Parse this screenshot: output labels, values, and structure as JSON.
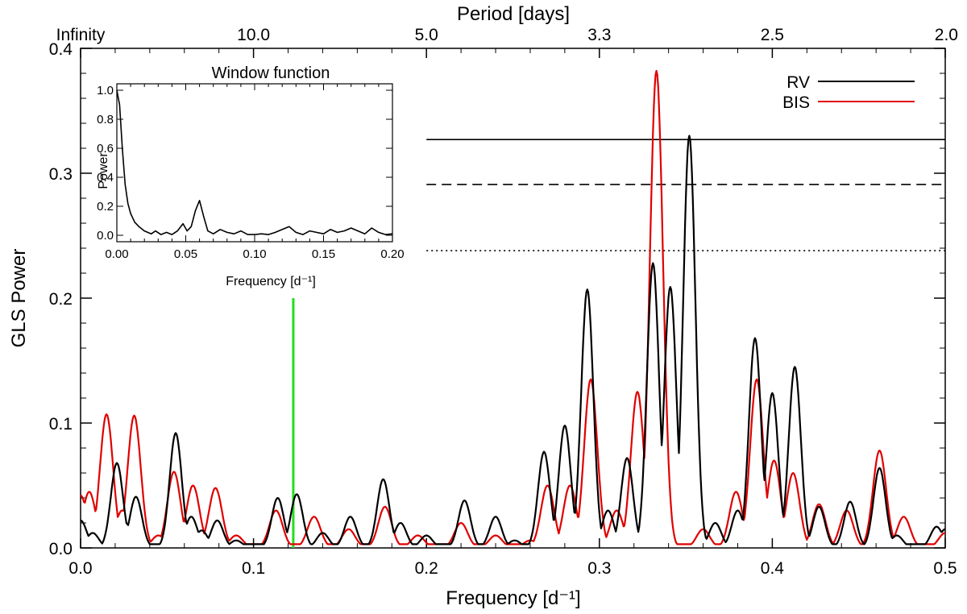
{
  "chart_data": {
    "type": "line",
    "xlabel": "Frequency [d⁻¹]",
    "ylabel": "GLS Power",
    "top_axis_title": "Period [days]",
    "xlim": [
      0.0,
      0.5
    ],
    "ylim": [
      0.0,
      0.4
    ],
    "x_ticks": [
      {
        "value": 0.0,
        "label": "0.0"
      },
      {
        "value": 0.1,
        "label": "0.1"
      },
      {
        "value": 0.2,
        "label": "0.2"
      },
      {
        "value": 0.3,
        "label": "0.3"
      },
      {
        "value": 0.4,
        "label": "0.4"
      },
      {
        "value": 0.5,
        "label": "0.5"
      }
    ],
    "y_ticks": [
      {
        "value": 0.0,
        "label": "0.0"
      },
      {
        "value": 0.1,
        "label": "0.1"
      },
      {
        "value": 0.2,
        "label": "0.2"
      },
      {
        "value": 0.3,
        "label": "0.3"
      },
      {
        "value": 0.4,
        "label": "0.4"
      }
    ],
    "top_ticks": [
      {
        "freq": 0.0,
        "label": "Infinity"
      },
      {
        "freq": 0.1,
        "label": "10.0"
      },
      {
        "freq": 0.2,
        "label": "5.0"
      },
      {
        "freq": 0.3,
        "label": "3.3"
      },
      {
        "freq": 0.4,
        "label": "2.5"
      },
      {
        "freq": 0.5,
        "label": "2.0"
      }
    ],
    "legend": {
      "position": "top-right",
      "entries": [
        {
          "name": "RV",
          "color": "#000000"
        },
        {
          "name": "BIS",
          "color": "#e00000"
        }
      ]
    },
    "fap_levels": [
      {
        "style": "solid",
        "y": 0.327,
        "x_start": 0.2,
        "x_end": 0.5
      },
      {
        "style": "dashed",
        "y": 0.291,
        "x_start": 0.2,
        "x_end": 0.5
      },
      {
        "style": "dotted",
        "y": 0.238,
        "x_start": 0.2,
        "x_end": 0.5
      }
    ],
    "marker_line": {
      "x": 0.123,
      "y_top": 0.2,
      "color": "#22dd22"
    },
    "series": [
      {
        "name": "RV",
        "color": "#000000",
        "peaks": [
          [
            0.0,
            0.022
          ],
          [
            0.007,
            0.012
          ],
          [
            0.021,
            0.068
          ],
          [
            0.026,
            0.02
          ],
          [
            0.032,
            0.041
          ],
          [
            0.042,
            0.003
          ],
          [
            0.055,
            0.092
          ],
          [
            0.064,
            0.025
          ],
          [
            0.07,
            0.014
          ],
          [
            0.079,
            0.022
          ],
          [
            0.09,
            0.006
          ],
          [
            0.114,
            0.04
          ],
          [
            0.125,
            0.043
          ],
          [
            0.14,
            0.012
          ],
          [
            0.156,
            0.025
          ],
          [
            0.175,
            0.055
          ],
          [
            0.185,
            0.02
          ],
          [
            0.2,
            0.01
          ],
          [
            0.222,
            0.038
          ],
          [
            0.24,
            0.025
          ],
          [
            0.251,
            0.006
          ],
          [
            0.268,
            0.077
          ],
          [
            0.28,
            0.098
          ],
          [
            0.293,
            0.207
          ],
          [
            0.305,
            0.03
          ],
          [
            0.316,
            0.072
          ],
          [
            0.331,
            0.228
          ],
          [
            0.341,
            0.209
          ],
          [
            0.352,
            0.33
          ],
          [
            0.367,
            0.02
          ],
          [
            0.38,
            0.03
          ],
          [
            0.39,
            0.168
          ],
          [
            0.4,
            0.124
          ],
          [
            0.413,
            0.145
          ],
          [
            0.427,
            0.033
          ],
          [
            0.445,
            0.037
          ],
          [
            0.462,
            0.064
          ],
          [
            0.472,
            0.01
          ],
          [
            0.495,
            0.017
          ],
          [
            0.5,
            0.015
          ]
        ],
        "width": 0.0035
      },
      {
        "name": "BIS",
        "color": "#e00000",
        "peaks": [
          [
            0.0,
            0.042
          ],
          [
            0.005,
            0.045
          ],
          [
            0.015,
            0.107
          ],
          [
            0.024,
            0.03
          ],
          [
            0.031,
            0.106
          ],
          [
            0.045,
            0.01
          ],
          [
            0.054,
            0.061
          ],
          [
            0.065,
            0.05
          ],
          [
            0.078,
            0.048
          ],
          [
            0.09,
            0.01
          ],
          [
            0.113,
            0.03
          ],
          [
            0.135,
            0.025
          ],
          [
            0.155,
            0.015
          ],
          [
            0.176,
            0.033
          ],
          [
            0.195,
            0.01
          ],
          [
            0.22,
            0.02
          ],
          [
            0.24,
            0.01
          ],
          [
            0.26,
            0.006
          ],
          [
            0.27,
            0.05
          ],
          [
            0.283,
            0.05
          ],
          [
            0.295,
            0.135
          ],
          [
            0.31,
            0.03
          ],
          [
            0.322,
            0.125
          ],
          [
            0.333,
            0.382
          ],
          [
            0.36,
            0.015
          ],
          [
            0.379,
            0.045
          ],
          [
            0.391,
            0.135
          ],
          [
            0.401,
            0.07
          ],
          [
            0.412,
            0.06
          ],
          [
            0.427,
            0.035
          ],
          [
            0.443,
            0.03
          ],
          [
            0.462,
            0.078
          ],
          [
            0.476,
            0.025
          ],
          [
            0.5,
            0.012
          ]
        ],
        "width": 0.0038
      }
    ],
    "inset": {
      "title": "Window function",
      "xlabel": "Frequency [d⁻¹]",
      "ylabel": "Power",
      "xlim": [
        0.0,
        0.2
      ],
      "ylim": [
        0.0,
        1.0
      ],
      "x_ticks": [
        {
          "value": 0.0,
          "label": "0.00"
        },
        {
          "value": 0.05,
          "label": "0.05"
        },
        {
          "value": 0.1,
          "label": "0.10"
        },
        {
          "value": 0.15,
          "label": "0.15"
        },
        {
          "value": 0.2,
          "label": "0.20"
        }
      ],
      "y_ticks": [
        {
          "value": 0.0,
          "label": "0.0"
        },
        {
          "value": 0.2,
          "label": "0.2"
        },
        {
          "value": 0.4,
          "label": "0.4"
        },
        {
          "value": 0.6,
          "label": "0.6"
        },
        {
          "value": 0.8,
          "label": "0.8"
        },
        {
          "value": 1.0,
          "label": "1.0"
        }
      ],
      "series": {
        "name": "Window",
        "color": "#000000",
        "x": [
          0.0,
          0.002,
          0.004,
          0.006,
          0.008,
          0.01,
          0.013,
          0.016,
          0.02,
          0.025,
          0.028,
          0.032,
          0.036,
          0.04,
          0.044,
          0.048,
          0.051,
          0.054,
          0.057,
          0.06,
          0.063,
          0.066,
          0.07,
          0.075,
          0.08,
          0.085,
          0.09,
          0.095,
          0.1,
          0.105,
          0.11,
          0.115,
          0.12,
          0.125,
          0.13,
          0.135,
          0.14,
          0.145,
          0.15,
          0.155,
          0.16,
          0.165,
          0.17,
          0.175,
          0.18,
          0.185,
          0.19,
          0.195,
          0.2
        ],
        "y": [
          1.0,
          0.9,
          0.6,
          0.35,
          0.22,
          0.15,
          0.09,
          0.06,
          0.03,
          0.01,
          0.03,
          0.005,
          0.02,
          0.005,
          0.03,
          0.08,
          0.03,
          0.06,
          0.17,
          0.24,
          0.13,
          0.03,
          0.01,
          0.04,
          0.02,
          0.01,
          0.03,
          0.005,
          0.005,
          0.01,
          0.005,
          0.02,
          0.04,
          0.06,
          0.02,
          0.005,
          0.03,
          0.02,
          0.01,
          0.04,
          0.02,
          0.03,
          0.05,
          0.03,
          0.01,
          0.05,
          0.02,
          0.005,
          0.01
        ]
      }
    }
  }
}
